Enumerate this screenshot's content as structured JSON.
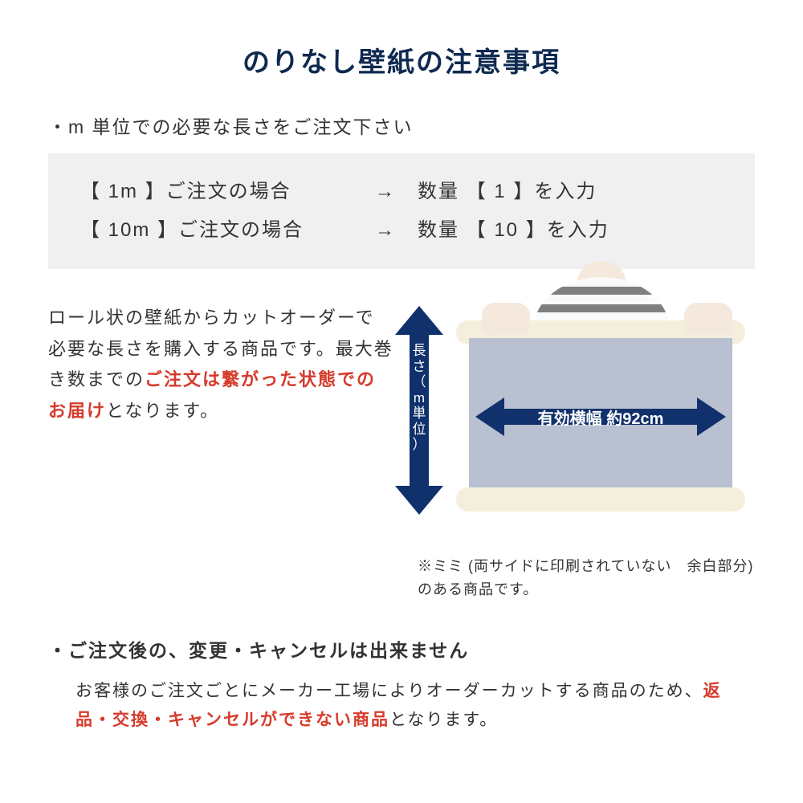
{
  "colors": {
    "title": "#0f2a50",
    "text": "#333333",
    "red": "#d63a2b",
    "box_bg": "#f0f0f0",
    "arrow_fill": "#10316b",
    "paper_fill": "#b8c0d1",
    "roll_fill": "#f4efdd"
  },
  "title": "のりなし壁紙の注意事項",
  "bullet1": "・m 単位での必要な長さをご注文下さい",
  "examples": [
    {
      "left": "【 1m 】ご注文の場合",
      "arrow": "→",
      "right": "数量 【 1 】を入力"
    },
    {
      "left": "【 10m 】ご注文の場合",
      "arrow": "→",
      "right": "数量 【 10 】を入力"
    }
  ],
  "mid_text": {
    "part1": "ロール状の壁紙からカットオーダーで必要な長さを購入する商品です。最大巻き数までの",
    "red": "ご注文は繋がった状態でのお届け",
    "part2": "となります。"
  },
  "diagram": {
    "vert_label": "長さ（m単位）",
    "horiz_label": "有効横幅 約92cm"
  },
  "note": "※ミミ (両サイドに印刷されていない　余白部分) のある商品です。",
  "bullet2": "・ご注文後の、変更・キャンセルは出来ません",
  "body2": {
    "part1": "お客様のご注文ごとにメーカー工場によりオーダーカットする商品のため、",
    "red": "返品・交換・キャンセルができない商品",
    "part2": "となります。"
  }
}
